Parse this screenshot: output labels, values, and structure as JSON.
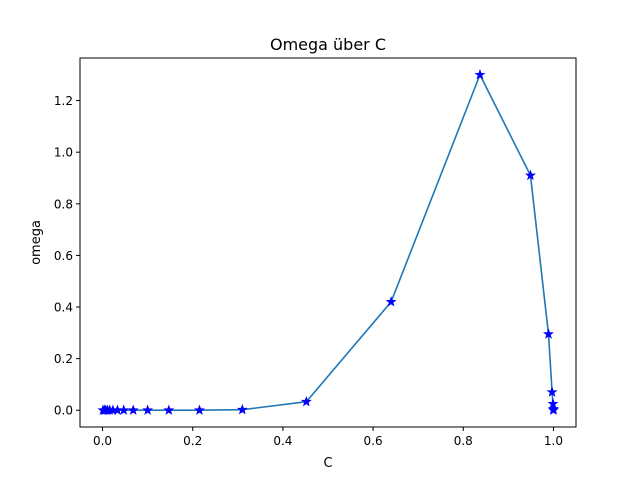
{
  "chart_data": {
    "type": "line",
    "title": "Omega über C",
    "xlabel": "C",
    "ylabel": "omega",
    "xlim": [
      -0.05,
      1.05
    ],
    "ylim": [
      -0.065,
      1.365
    ],
    "xticks": [
      0.0,
      0.2,
      0.4,
      0.6,
      0.8,
      1.0
    ],
    "xtick_labels": [
      "0.0",
      "0.2",
      "0.4",
      "0.6",
      "0.8",
      "1.0"
    ],
    "yticks": [
      0.0,
      0.2,
      0.4,
      0.6,
      0.8,
      1.0,
      1.2
    ],
    "ytick_labels": [
      "0.0",
      "0.2",
      "0.4",
      "0.6",
      "0.8",
      "1.0",
      "1.2"
    ],
    "grid": false,
    "series": [
      {
        "name": "omega",
        "line_color": "#1f77b4",
        "marker_color": "#0000ff",
        "marker": "star",
        "x": [
          0.001,
          0.004,
          0.007,
          0.011,
          0.016,
          0.023,
          0.033,
          0.047,
          0.068,
          0.1,
          0.147,
          0.215,
          0.31,
          0.452,
          0.64,
          0.837,
          0.949,
          0.989,
          0.997,
          0.999,
          1.0,
          1.0
        ],
        "y": [
          0.0,
          0.0,
          0.0,
          0.0,
          0.0,
          0.0,
          0.0,
          0.0,
          0.0,
          0.0,
          0.0,
          0.0,
          0.002,
          0.033,
          0.42,
          1.3,
          0.91,
          0.295,
          0.07,
          0.025,
          0.005,
          0.0
        ]
      }
    ]
  }
}
